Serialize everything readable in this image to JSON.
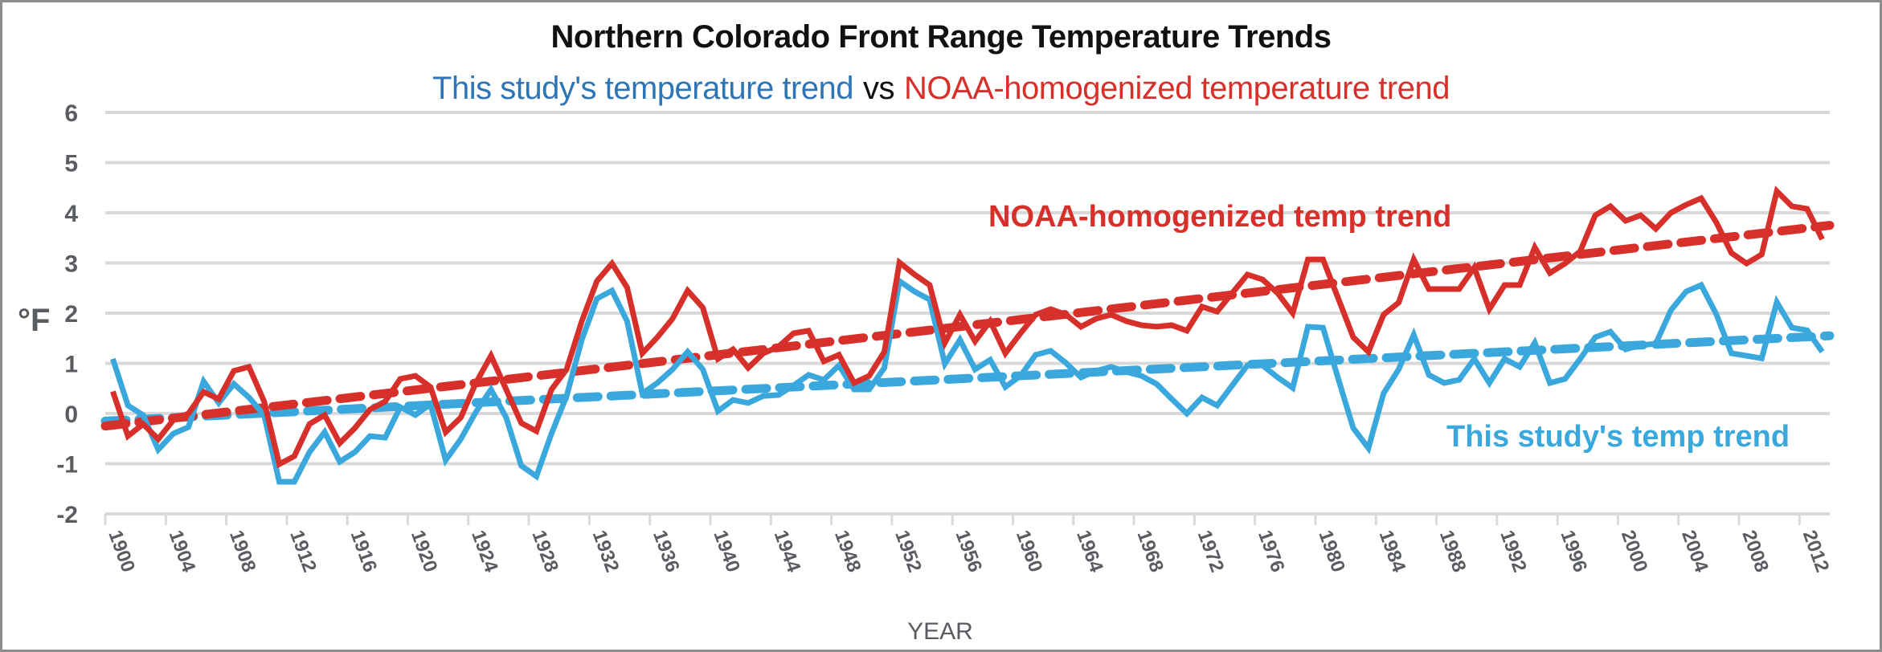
{
  "chart_data": {
    "type": "line",
    "title": "Northern Colorado Front Range Temperature Trends",
    "subtitle": {
      "part1": "This study's temperature trend",
      "vs": "vs",
      "part2": "NOAA-homogenized temperature trend"
    },
    "xlabel": "YEAR",
    "ylabel": "°F",
    "ylim": [
      -2,
      6
    ],
    "yticks": [
      -2,
      -1,
      0,
      1,
      2,
      3,
      4,
      5,
      6
    ],
    "xlim": [
      1900,
      2013
    ],
    "xtick_labels": [
      "1900",
      "1904",
      "1908",
      "1912",
      "1916",
      "1920",
      "1924",
      "1928",
      "1932",
      "1936",
      "1940",
      "1944",
      "1948",
      "1952",
      "1956",
      "1960",
      "1964",
      "1968",
      "1972",
      "1976",
      "1980",
      "1984",
      "1988",
      "1992",
      "1996",
      "2000",
      "2004",
      "2008",
      "2012"
    ],
    "grid": true,
    "colors": {
      "study": "#3aa8dc",
      "noaa": "#d7302b",
      "subtitle_blue": "#2e75b6",
      "grid": "#d9d9d9",
      "text": "#595c60"
    },
    "start_year": 1900,
    "series": [
      {
        "name": "This study's temp trend",
        "color": "#3aa8dc",
        "style": "solid",
        "values": [
          1.09,
          0.16,
          -0.03,
          -0.72,
          -0.4,
          -0.27,
          0.64,
          0.21,
          0.59,
          0.32,
          -0.03,
          -1.36,
          -1.36,
          -0.77,
          -0.37,
          -0.96,
          -0.77,
          -0.45,
          -0.48,
          0.13,
          -0.03,
          0.19,
          -0.93,
          -0.51,
          0.03,
          0.48,
          -0.08,
          -1.04,
          -1.25,
          -0.4,
          0.35,
          1.47,
          2.29,
          2.45,
          1.84,
          0.4,
          0.61,
          0.88,
          1.23,
          0.88,
          0.05,
          0.27,
          0.21,
          0.35,
          0.37,
          0.56,
          0.77,
          0.67,
          0.96,
          0.48,
          0.48,
          0.91,
          2.64,
          2.43,
          2.27,
          0.99,
          1.47,
          0.88,
          1.07,
          0.53,
          0.75,
          1.17,
          1.25,
          1.01,
          0.72,
          0.85,
          0.93,
          0.83,
          0.75,
          0.59,
          0.29,
          0.0,
          0.32,
          0.16,
          0.56,
          0.96,
          0.96,
          0.72,
          0.51,
          1.73,
          1.71,
          0.7,
          -0.29,
          -0.69,
          0.4,
          0.88,
          1.57,
          0.77,
          0.61,
          0.67,
          1.09,
          0.61,
          1.09,
          0.93,
          1.41,
          0.61,
          0.69,
          1.09,
          1.52,
          1.63,
          1.28,
          1.36,
          1.39,
          2.06,
          2.43,
          2.56,
          1.98,
          1.2,
          1.15,
          1.1,
          2.22,
          1.71,
          1.66,
          1.23
        ]
      },
      {
        "name": "NOAA-homogenized temp trend",
        "color": "#d7302b",
        "style": "solid",
        "values": [
          0.44,
          -0.45,
          -0.21,
          -0.51,
          -0.13,
          0.0,
          0.43,
          0.29,
          0.85,
          0.93,
          0.24,
          -1.01,
          -0.85,
          -0.21,
          -0.03,
          -0.59,
          -0.29,
          0.08,
          0.24,
          0.69,
          0.75,
          0.53,
          -0.37,
          -0.08,
          0.61,
          1.15,
          0.48,
          -0.19,
          -0.35,
          0.48,
          0.88,
          1.84,
          2.64,
          2.99,
          2.51,
          1.2,
          1.52,
          1.89,
          2.45,
          2.11,
          1.09,
          1.28,
          0.91,
          1.2,
          1.33,
          1.6,
          1.65,
          1.04,
          1.17,
          0.61,
          0.75,
          1.23,
          3.01,
          2.77,
          2.56,
          1.41,
          1.97,
          1.44,
          1.84,
          1.2,
          1.6,
          1.97,
          2.08,
          1.97,
          1.73,
          1.89,
          1.97,
          1.84,
          1.76,
          1.73,
          1.76,
          1.65,
          2.13,
          2.03,
          2.4,
          2.77,
          2.67,
          2.4,
          2.0,
          3.07,
          3.07,
          2.3,
          1.52,
          1.23,
          1.97,
          2.21,
          3.07,
          2.48,
          2.48,
          2.48,
          2.91,
          2.08,
          2.56,
          2.56,
          3.31,
          2.8,
          2.99,
          3.23,
          3.95,
          4.13,
          3.84,
          3.95,
          3.68,
          4.0,
          4.16,
          4.29,
          3.81,
          3.2,
          2.99,
          3.17,
          4.43,
          4.13,
          4.08,
          3.47
        ]
      },
      {
        "name": "This study linear trend",
        "color": "#3aa8dc",
        "style": "dashed",
        "trend": {
          "start_year": 1900,
          "start": -0.15,
          "end_year": 2014,
          "end": 1.55
        }
      },
      {
        "name": "NOAA linear trend",
        "color": "#d7302b",
        "style": "dashed",
        "trend": {
          "start_year": 1900,
          "start": -0.25,
          "end_year": 2014,
          "end": 3.75
        }
      }
    ],
    "annotations": [
      {
        "text": "NOAA-homogenized temp trend",
        "color": "#d7302b",
        "anchor_year": 1951,
        "anchor_value": 3.8
      },
      {
        "text": "This study's temp trend",
        "color": "#3aa8dc",
        "anchor_year": 1995,
        "anchor_value": -0.5
      }
    ],
    "legend": "none"
  }
}
